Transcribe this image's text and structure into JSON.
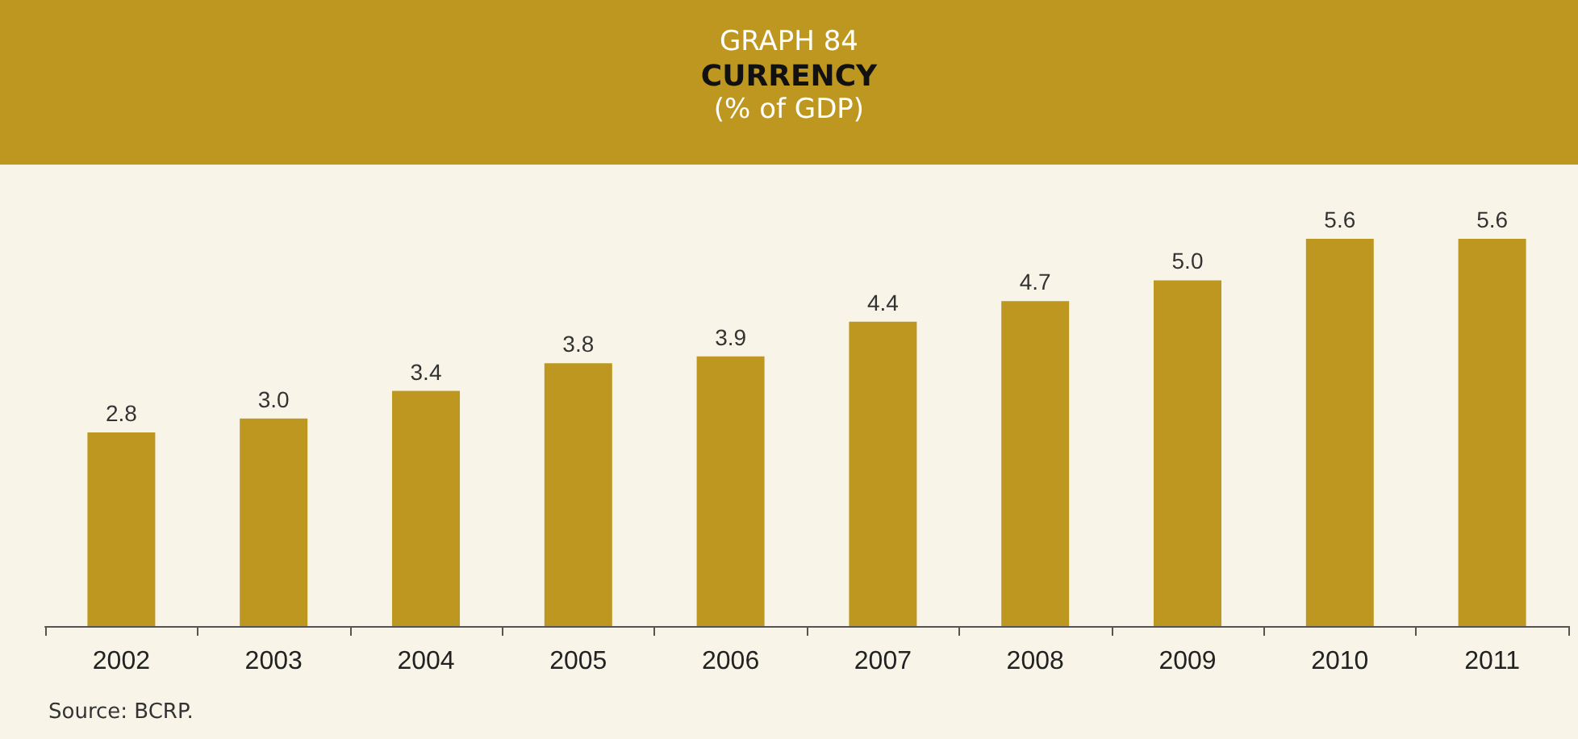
{
  "chart_data": {
    "type": "bar",
    "title": "GRAPH 84",
    "subtitle": "CURRENCY",
    "ylabel": "(% of GDP)",
    "categories": [
      "2002",
      "2003",
      "2004",
      "2005",
      "2006",
      "2007",
      "2008",
      "2009",
      "2010",
      "2011"
    ],
    "values": [
      2.8,
      3.0,
      3.4,
      3.8,
      3.9,
      4.4,
      4.7,
      5.0,
      5.6,
      5.6
    ],
    "value_labels": [
      "2.8",
      "3.0",
      "3.4",
      "3.8",
      "3.9",
      "4.4",
      "4.7",
      "5.0",
      "5.6",
      "5.6"
    ],
    "color": "#bd971f",
    "annotations": [
      "Source: BCRP."
    ]
  }
}
